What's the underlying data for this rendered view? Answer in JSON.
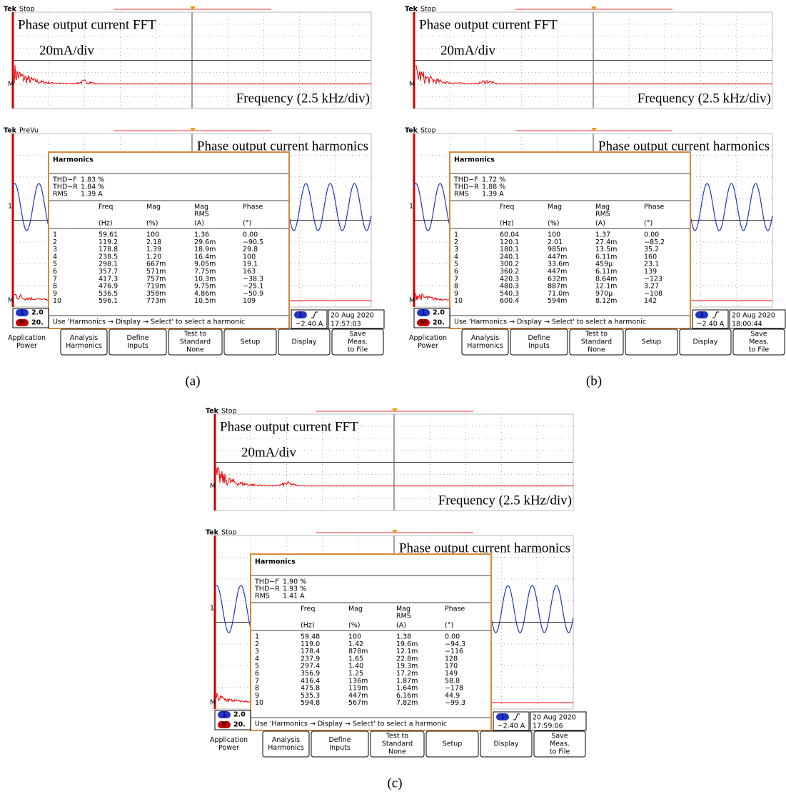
{
  "panels": [
    {
      "label": "(a)",
      "fft": {
        "brand": "Tek",
        "status": "Stop",
        "title": "Phase output current FFT",
        "scale": "20mA/div",
        "x_label": "Frequency (2.5 kHz/div)",
        "marker": "M"
      },
      "harmonics": {
        "brand": "Tek",
        "status": "PreVu",
        "title": "Phase output current harmonics",
        "markers": [
          "1",
          "M"
        ],
        "table": {
          "heading": "Harmonics",
          "summary": [
            [
              "THD−F",
              "1.83 %"
            ],
            [
              "THD−R",
              "1.84 %"
            ],
            [
              "RMS",
              "1.39 A"
            ]
          ],
          "columns": [
            {
              "name": "Freq",
              "unit": "(Hz)"
            },
            {
              "name": "Mag",
              "unit": "(%)"
            },
            {
              "name": "Mag",
              "sub": "RMS",
              "unit": "(A)"
            },
            {
              "name": "Phase",
              "unit": "(°)"
            }
          ],
          "rows": [
            [
              "1",
              "59.61",
              "100",
              "1.36",
              "0.00"
            ],
            [
              "2",
              "119.2",
              "2.18",
              "29.6m",
              "−90.5"
            ],
            [
              "3",
              "178.8",
              "1.39",
              "18.9m",
              "29.8"
            ],
            [
              "4",
              "238.5",
              "1.20",
              "16.4m",
              "100"
            ],
            [
              "5",
              "298.1",
              "667m",
              "9.05m",
              "19.1"
            ],
            [
              "6",
              "357.7",
              "571m",
              "7.75m",
              "163"
            ],
            [
              "7",
              "417.3",
              "757m",
              "10.3m",
              "−38.3"
            ],
            [
              "8",
              "476.9",
              "719m",
              "9.75m",
              "−25.1"
            ],
            [
              "9",
              "536.5",
              "358m",
              "4.86m",
              "−50.9"
            ],
            [
              "10",
              "596.1",
              "773m",
              "10.5m",
              "109"
            ]
          ],
          "hint": "Use 'Harmonics → Display → Select' to select a harmonic"
        },
        "channels": [
          {
            "id": "1",
            "scale": "2.0"
          },
          {
            "id": "M",
            "scale": "20."
          }
        ],
        "trigger": "−2.40 A",
        "date": "20 Aug 2020",
        "time": "17:57:03"
      },
      "softkeys": [
        [
          "Application",
          "Power"
        ],
        [
          "Analysis",
          "Harmonics"
        ],
        [
          "Define",
          "Inputs"
        ],
        [
          "Test to",
          "Standard",
          "None"
        ],
        [
          "Setup"
        ],
        [
          "Display"
        ],
        [
          "Save",
          "Meas.",
          "to File"
        ]
      ]
    },
    {
      "label": "(b)",
      "fft": {
        "brand": "Tek",
        "status": "Stop",
        "title": "Phase output current FFT",
        "scale": "20mA/div",
        "x_label": "Frequency (2.5 kHz/div)",
        "marker": "M"
      },
      "harmonics": {
        "brand": "Tek",
        "status": "Stop",
        "title": "Phase output current harmonics",
        "markers": [
          "1",
          "M"
        ],
        "table": {
          "heading": "Harmonics",
          "summary": [
            [
              "THD−F",
              "1.72 %"
            ],
            [
              "THD−R",
              "1.88 %"
            ],
            [
              "RMS",
              "1.39 A"
            ]
          ],
          "columns": [
            {
              "name": "Freq",
              "unit": "(Hz)"
            },
            {
              "name": "Mag",
              "unit": "(%)"
            },
            {
              "name": "Mag",
              "sub": "RMS",
              "unit": "(A)"
            },
            {
              "name": "Phase",
              "unit": "(°)"
            }
          ],
          "rows": [
            [
              "1",
              "60.04",
              "100",
              "1.37",
              "0.00"
            ],
            [
              "2",
              "120.1",
              "2.01",
              "27.4m",
              "−85.2"
            ],
            [
              "3",
              "180.1",
              "985m",
              "13.5m",
              "35.2"
            ],
            [
              "4",
              "240.1",
              "447m",
              "6.11m",
              "160"
            ],
            [
              "5",
              "300.2",
              "33.6m",
              "459µ",
              "23.1"
            ],
            [
              "6",
              "360.2",
              "447m",
              "6.11m",
              "139"
            ],
            [
              "7",
              "420.3",
              "632m",
              "8.64m",
              "−123"
            ],
            [
              "8",
              "480.3",
              "887m",
              "12.1m",
              "3.27"
            ],
            [
              "9",
              "540.3",
              "71.0m",
              "970µ",
              "−108"
            ],
            [
              "10",
              "600.4",
              "594m",
              "8.12m",
              "142"
            ]
          ],
          "hint": "Use 'Harmonics → Display → Select' to select a harmonic"
        },
        "channels": [
          {
            "id": "1",
            "scale": "2.0"
          },
          {
            "id": "M",
            "scale": "20."
          }
        ],
        "trigger": "−2.40 A",
        "date": "20 Aug 2020",
        "time": "18:00:44"
      },
      "softkeys": [
        [
          "Application",
          "Power"
        ],
        [
          "Analysis",
          "Harmonics"
        ],
        [
          "Define",
          "Inputs"
        ],
        [
          "Test to",
          "Standard",
          "None"
        ],
        [
          "Setup"
        ],
        [
          "Display"
        ],
        [
          "Save",
          "Meas.",
          "to File"
        ]
      ]
    },
    {
      "label": "(c)",
      "fft": {
        "brand": "Tek",
        "status": "Stop",
        "title": "Phase output current FFT",
        "scale": "20mA/div",
        "x_label": "Frequency (2.5 kHz/div)",
        "marker": "M"
      },
      "harmonics": {
        "brand": "Tek",
        "status": "Stop",
        "title": "Phase output current harmonics",
        "markers": [
          "1",
          "M"
        ],
        "table": {
          "heading": "Harmonics",
          "summary": [
            [
              "THD−F",
              "1.90 %"
            ],
            [
              "THD−R",
              "1.93 %"
            ],
            [
              "RMS",
              "1.41 A"
            ]
          ],
          "columns": [
            {
              "name": "Freq",
              "unit": "(Hz)"
            },
            {
              "name": "Mag",
              "unit": "(%)"
            },
            {
              "name": "Mag",
              "sub": "RMS",
              "unit": "(A)"
            },
            {
              "name": "Phase",
              "unit": "(°)"
            }
          ],
          "rows": [
            [
              "1",
              "59.48",
              "100",
              "1.38",
              "0.00"
            ],
            [
              "2",
              "119.0",
              "1.42",
              "19.6m",
              "−94.3"
            ],
            [
              "3",
              "178.4",
              "878m",
              "12.1m",
              "−116"
            ],
            [
              "4",
              "237.9",
              "1.65",
              "22.8m",
              "128"
            ],
            [
              "5",
              "297.4",
              "1.40",
              "19.3m",
              "170"
            ],
            [
              "6",
              "356.9",
              "1.25",
              "17.2m",
              "149"
            ],
            [
              "7",
              "416.4",
              "136m",
              "1.87m",
              "58.8"
            ],
            [
              "8",
              "475.8",
              "119m",
              "1.64m",
              "−178"
            ],
            [
              "9",
              "535.3",
              "447m",
              "6.16m",
              "44.9"
            ],
            [
              "10",
              "594.8",
              "567m",
              "7.82m",
              "−99.3"
            ]
          ],
          "hint": "Use 'Harmonics → Display → Select' to select a harmonic"
        },
        "channels": [
          {
            "id": "1",
            "scale": "2.0"
          },
          {
            "id": "M",
            "scale": "20."
          }
        ],
        "trigger": "−2.40 A",
        "date": "20 Aug 2020",
        "time": "17:59:06"
      },
      "softkeys": [
        [
          "Application",
          "Power"
        ],
        [
          "Analysis",
          "Harmonics"
        ],
        [
          "Define",
          "Inputs"
        ],
        [
          "Test to",
          "Standard",
          "None"
        ],
        [
          "Setup"
        ],
        [
          "Display"
        ],
        [
          "Save",
          "Meas.",
          "to File"
        ]
      ]
    }
  ]
}
